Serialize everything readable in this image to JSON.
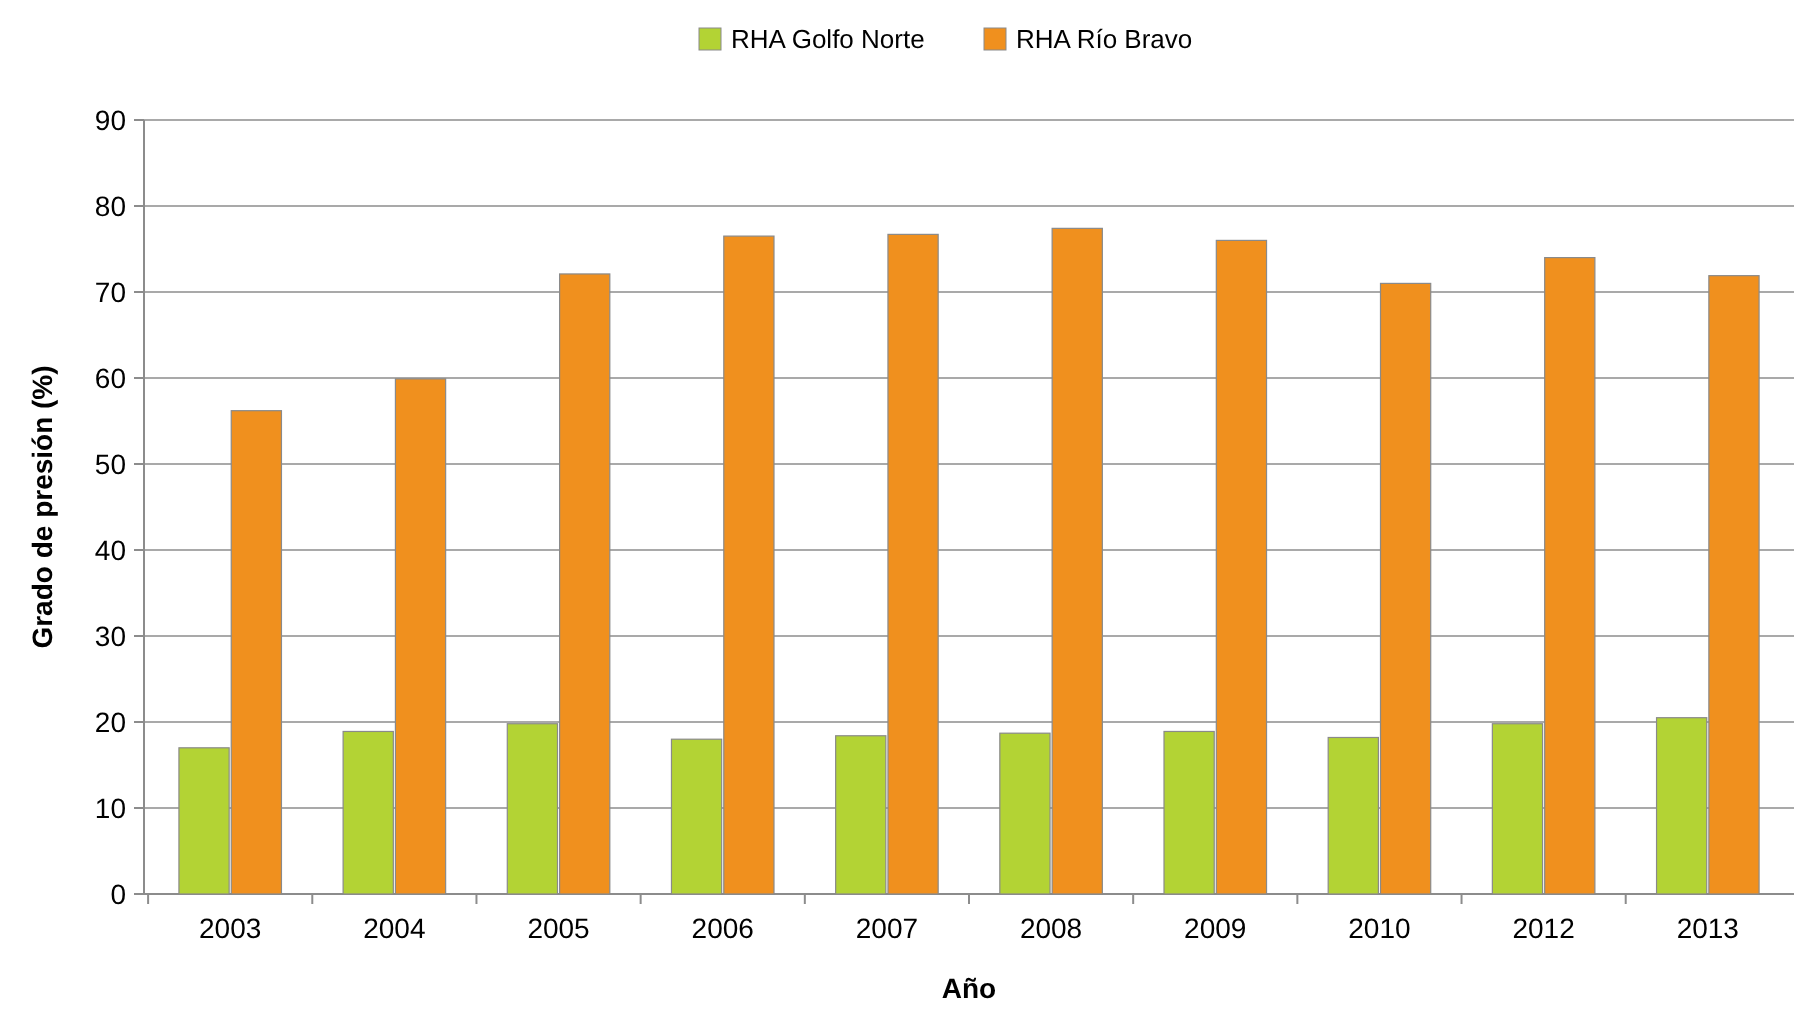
{
  "chart_data": {
    "type": "bar",
    "xlabel": "Año",
    "ylabel": "Grado de presión (%)",
    "categories": [
      "2003",
      "2004",
      "2005",
      "2006",
      "2007",
      "2008",
      "2009",
      "2010",
      "2012",
      "2013"
    ],
    "series": [
      {
        "name": "RHA Golfo Norte",
        "color": "#b3d334",
        "values": [
          17.0,
          18.9,
          19.8,
          18.0,
          18.4,
          18.7,
          18.9,
          18.2,
          19.8,
          20.5
        ]
      },
      {
        "name": "RHA Río Bravo",
        "color": "#f0901e",
        "values": [
          56.2,
          59.9,
          72.1,
          76.5,
          76.7,
          77.4,
          76.0,
          71.0,
          74.0,
          71.9
        ]
      }
    ],
    "ylim": [
      0,
      90
    ],
    "yticks": [
      0,
      10,
      20,
      30,
      40,
      50,
      60,
      70,
      80,
      90
    ],
    "grid": "y",
    "legend": "top"
  }
}
